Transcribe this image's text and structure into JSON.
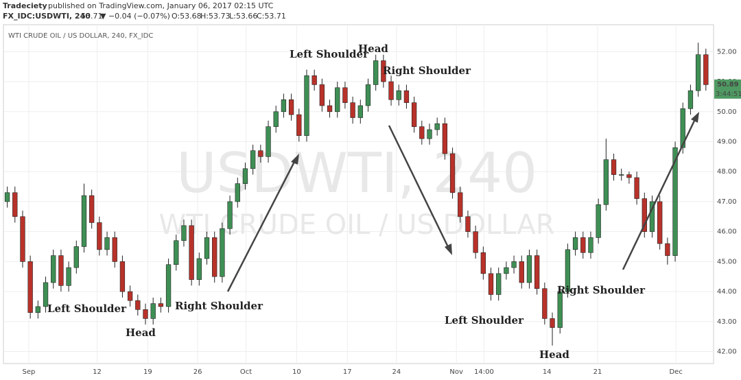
{
  "header": {
    "author": "Tradeciety",
    "published": "published on TradingView.com, January 06, 2017 02:15 UTC",
    "symbol": "FX_IDC:USDWTI, 240",
    "last": "53.71",
    "change": "▼ −0.04 (−0.07%)",
    "open": "O:53.68",
    "high": "H:53.73",
    "low": "L:53.66",
    "close": "C:53.71"
  },
  "chart_data": {
    "type": "candlestick",
    "title": "WTI CRUDE OIL / US DOLLAR, 240, FX_IDC",
    "watermark": "USDWTI, 240",
    "watermark_subtitle": "WTI CRUDE OIL / US DOLLAR",
    "up_color": "#3f8f55",
    "down_color": "#b8322a",
    "grid": true,
    "open": [
      47.0,
      47.3,
      46.5,
      45.0,
      43.3,
      43.5,
      44.3,
      45.2,
      44.2,
      44.8,
      45.5,
      47.2,
      46.3,
      45.4,
      45.8,
      45.0,
      44.0,
      43.7,
      43.4,
      43.1,
      43.6,
      43.5,
      44.9,
      45.7,
      46.2,
      44.4,
      45.1,
      45.8,
      44.5,
      46.1,
      47.0,
      47.6,
      48.1,
      48.7,
      48.5,
      49.5,
      50.0,
      50.4,
      49.9,
      49.2,
      51.2,
      50.9,
      50.2,
      50.0,
      50.8,
      50.3,
      49.8,
      50.2,
      50.9,
      51.7,
      51.0,
      50.4,
      50.7,
      50.3,
      49.5,
      49.1,
      49.4,
      49.6,
      48.6,
      47.3,
      46.5,
      46.0,
      45.3,
      44.6,
      43.9,
      44.6,
      44.8,
      45.0,
      44.3,
      45.2,
      44.1,
      43.1,
      42.8,
      44.0,
      45.4,
      45.8,
      45.3,
      45.8,
      46.9,
      48.4,
      47.9,
      47.9,
      47.8,
      47.1,
      46.0,
      47.0,
      45.6,
      45.2,
      48.8,
      50.1,
      50.7,
      51.9
    ],
    "high": [
      47.5,
      47.5,
      46.7,
      45.2,
      43.7,
      44.5,
      45.4,
      45.4,
      45.0,
      45.7,
      47.6,
      47.4,
      46.5,
      46.0,
      46.0,
      45.2,
      44.2,
      43.9,
      43.6,
      43.8,
      43.8,
      45.1,
      45.9,
      46.4,
      46.4,
      45.3,
      46.0,
      46.0,
      46.3,
      47.2,
      47.8,
      48.3,
      48.9,
      48.9,
      49.7,
      50.2,
      50.6,
      50.6,
      50.1,
      51.4,
      51.4,
      51.1,
      50.4,
      51.0,
      51.0,
      50.5,
      50.4,
      51.1,
      51.9,
      51.9,
      51.2,
      50.9,
      50.9,
      50.5,
      49.7,
      49.6,
      49.8,
      49.8,
      48.8,
      47.5,
      46.7,
      46.2,
      45.5,
      44.8,
      44.8,
      45.0,
      45.2,
      45.2,
      45.4,
      45.4,
      44.3,
      43.3,
      44.2,
      45.6,
      46.0,
      46.0,
      46.0,
      47.1,
      49.1,
      48.6,
      48.1,
      48.0,
      48.0,
      47.3,
      47.2,
      47.2,
      45.8,
      49.0,
      50.3,
      50.9,
      52.3,
      52.1
    ],
    "low": [
      46.8,
      46.3,
      44.8,
      43.1,
      43.1,
      43.3,
      44.1,
      44.0,
      44.0,
      44.6,
      45.3,
      46.1,
      45.2,
      45.2,
      44.8,
      43.8,
      43.5,
      43.2,
      42.9,
      42.9,
      43.3,
      43.3,
      44.7,
      45.5,
      44.2,
      44.2,
      44.9,
      44.3,
      44.3,
      45.9,
      46.8,
      47.4,
      47.9,
      48.3,
      48.3,
      49.3,
      49.8,
      49.7,
      49.0,
      49.0,
      50.7,
      50.0,
      49.8,
      49.8,
      50.1,
      49.6,
      49.6,
      50.0,
      50.7,
      50.8,
      50.2,
      50.2,
      50.1,
      49.3,
      48.9,
      48.9,
      49.2,
      48.4,
      47.1,
      46.3,
      45.8,
      45.1,
      44.4,
      43.7,
      43.7,
      44.4,
      44.6,
      44.1,
      44.1,
      43.9,
      42.9,
      42.2,
      42.6,
      43.8,
      45.2,
      45.1,
      45.1,
      45.6,
      46.7,
      47.7,
      47.7,
      47.6,
      46.9,
      45.8,
      45.8,
      45.4,
      44.9,
      45.0,
      48.6,
      49.9,
      50.5,
      50.7
    ],
    "close": [
      47.3,
      46.5,
      45.0,
      43.3,
      43.5,
      44.3,
      45.2,
      44.2,
      44.8,
      45.5,
      47.2,
      46.3,
      45.4,
      45.8,
      45.0,
      44.0,
      43.7,
      43.4,
      43.1,
      43.6,
      43.5,
      44.9,
      45.7,
      46.2,
      44.4,
      45.1,
      45.8,
      44.5,
      46.1,
      47.0,
      47.6,
      48.1,
      48.7,
      48.5,
      49.5,
      50.0,
      50.4,
      49.9,
      49.2,
      51.2,
      50.9,
      50.2,
      50.0,
      50.8,
      50.3,
      49.8,
      50.2,
      50.9,
      51.7,
      51.0,
      50.4,
      50.7,
      50.3,
      49.5,
      49.1,
      49.4,
      49.6,
      48.6,
      47.3,
      46.5,
      46.0,
      45.3,
      44.6,
      43.9,
      44.6,
      44.8,
      45.0,
      44.3,
      45.2,
      44.1,
      43.1,
      42.8,
      44.0,
      45.4,
      45.8,
      45.3,
      45.8,
      46.9,
      48.4,
      47.9,
      47.9,
      47.8,
      47.1,
      46.0,
      47.0,
      45.6,
      45.2,
      48.8,
      50.1,
      50.7,
      51.9,
      50.9
    ],
    "xlim": [
      -0.5,
      92
    ],
    "xticks": [
      {
        "value": 2.8,
        "label": "Sep"
      },
      {
        "value": 11.7,
        "label": "12"
      },
      {
        "value": 18.3,
        "label": "19"
      },
      {
        "value": 24.8,
        "label": "26"
      },
      {
        "value": 31.1,
        "label": "Oct"
      },
      {
        "value": 37.7,
        "label": "10"
      },
      {
        "value": 44.3,
        "label": "17"
      },
      {
        "value": 50.7,
        "label": "24"
      },
      {
        "value": 58.5,
        "label": "Nov"
      },
      {
        "value": 62.1,
        "label": "14:00"
      },
      {
        "value": 70.3,
        "label": "14"
      },
      {
        "value": 76.9,
        "label": "21"
      },
      {
        "value": 87.1,
        "label": "Dec"
      }
    ],
    "ylim": [
      41.6,
      52.9
    ],
    "yticks": [
      {
        "value": 42,
        "label": "42.00"
      },
      {
        "value": 43,
        "label": "43.00"
      },
      {
        "value": 44,
        "label": "44.00"
      },
      {
        "value": 45,
        "label": "45.00"
      },
      {
        "value": 46,
        "label": "46.00"
      },
      {
        "value": 47,
        "label": "47.00"
      },
      {
        "value": 48,
        "label": "48.00"
      },
      {
        "value": 49,
        "label": "49.00"
      },
      {
        "value": 50,
        "label": "50.00"
      },
      {
        "value": 51,
        "label": "51.00"
      },
      {
        "value": 52,
        "label": "52.00"
      }
    ],
    "last_price": {
      "value": 50.89,
      "label": "50.89"
    },
    "countdown": "3:44:51",
    "annotations": [
      "Left Shoulder",
      "Head",
      "Right Shoulder",
      "Left Shoulder",
      "Head",
      "Right Shoulder",
      "Left Shoulder",
      "Head",
      "Right Shoulder"
    ]
  }
}
